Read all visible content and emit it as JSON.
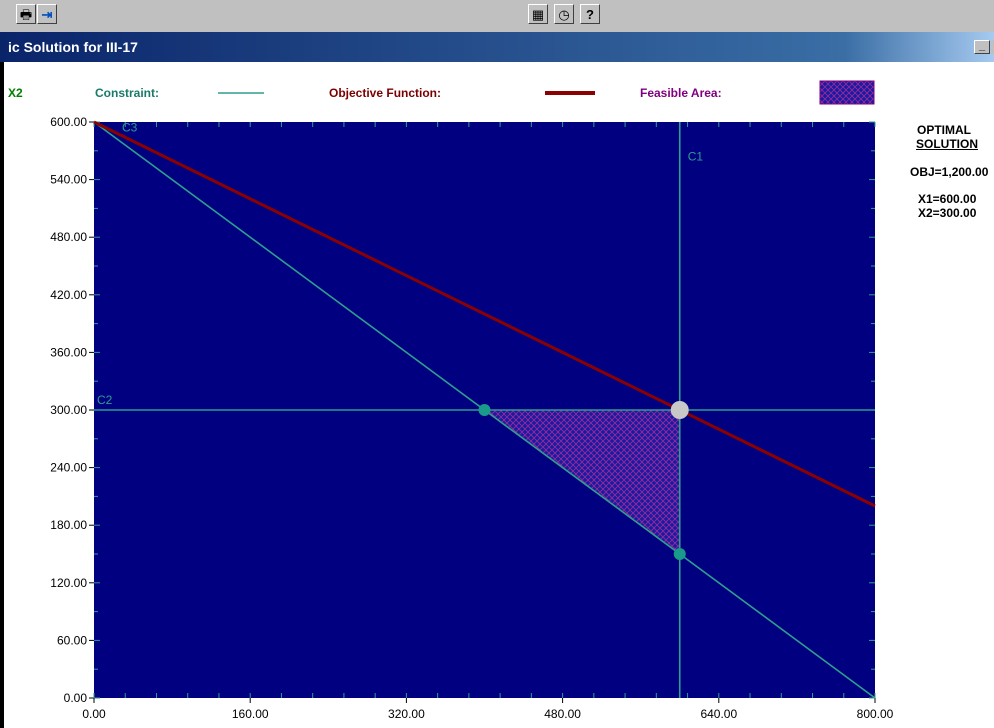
{
  "toolbar": {
    "buttons": [
      {
        "name": "print-icon",
        "glyph": "🖶"
      },
      {
        "name": "exit-icon",
        "glyph": "⇥"
      },
      {
        "name": "calculator-icon",
        "glyph": "▦"
      },
      {
        "name": "clock-icon",
        "glyph": "◷"
      },
      {
        "name": "help-icon",
        "glyph": "?"
      }
    ]
  },
  "window": {
    "title": "ic Solution for III-17",
    "minimize_label": "_"
  },
  "legend": {
    "y_axis_label": "X2",
    "constraint_label": "Constraint:",
    "objective_label": "Objective Function:",
    "feasible_label": "Feasible Area:",
    "colors": {
      "constraint": "#2e9e8e",
      "objective": "#8b0000",
      "feasible": "#7b1a8a",
      "feasible_fill": "#2a1aa8",
      "plot_bg": "#000080",
      "text_constraint": "#1a7a6a",
      "text_objective": "#7a0000",
      "text_feasible": "#800080",
      "text_axis_label": "#008000"
    }
  },
  "optimal": {
    "heading1": "OPTIMAL",
    "heading2": "SOLUTION",
    "obj": "OBJ=1,200.00",
    "x1": "X1=600.00",
    "x2": "X2=300.00"
  },
  "chart_data": {
    "type": "line",
    "title": "",
    "xlabel": "",
    "ylabel": "X2",
    "xlim": [
      0,
      800
    ],
    "ylim": [
      0,
      600
    ],
    "x_ticks": [
      0,
      160,
      320,
      480,
      640,
      800
    ],
    "x_tick_labels": [
      "0.00",
      "160.00",
      "320.00",
      "480.00",
      "640.00",
      "800.00"
    ],
    "y_ticks": [
      0,
      60,
      120,
      180,
      240,
      300,
      360,
      420,
      480,
      540,
      600
    ],
    "y_tick_labels": [
      "0.00",
      "60.00",
      "120.00",
      "180.00",
      "240.00",
      "300.00",
      "360.00",
      "420.00",
      "480.00",
      "540.00",
      "600.00"
    ],
    "constraints": [
      {
        "name": "C1",
        "points": [
          [
            600,
            0
          ],
          [
            600,
            600
          ]
        ]
      },
      {
        "name": "C2",
        "points": [
          [
            0,
            300
          ],
          [
            800,
            300
          ]
        ]
      },
      {
        "name": "C3",
        "points": [
          [
            0,
            600
          ],
          [
            800,
            0
          ]
        ]
      }
    ],
    "objective": {
      "points": [
        [
          0,
          600
        ],
        [
          800,
          200
        ]
      ]
    },
    "feasible_area": [
      [
        400,
        300
      ],
      [
        600,
        300
      ],
      [
        600,
        150
      ]
    ],
    "corner_points": [
      [
        400,
        300
      ],
      [
        600,
        150
      ]
    ],
    "optimal_point": [
      600,
      300
    ]
  }
}
